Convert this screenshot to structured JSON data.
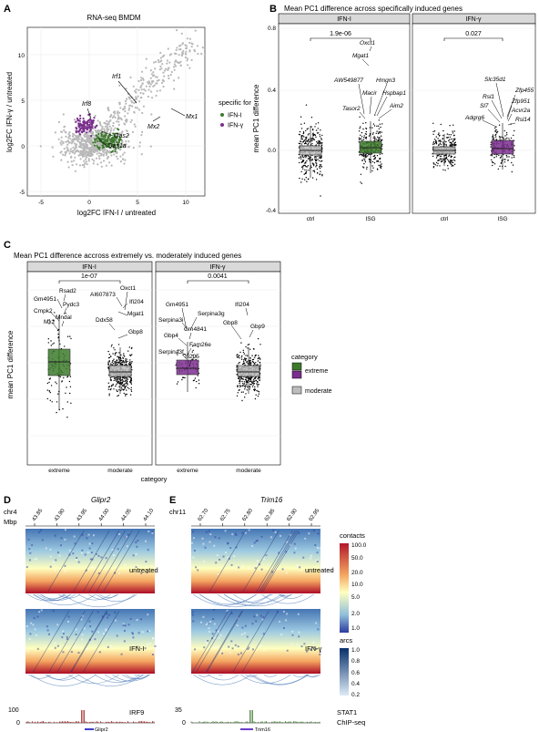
{
  "panels": {
    "A": "A",
    "B": "B",
    "C": "C",
    "D": "D",
    "E": "E"
  },
  "panel_a": {
    "title": "RNA-seq BMDM",
    "xlabel": "log2FC IFN-I / untreated",
    "ylabel": "log2FC IFN-γ / untreated",
    "xticks": [
      "-5",
      "0",
      "5",
      "10"
    ],
    "yticks": [
      "10",
      "5",
      "0",
      "-5"
    ],
    "labels": [
      "Irf1",
      "Irf8",
      "Oas2",
      "Oas1a",
      "Mx2",
      "Mx1"
    ],
    "legend_title": "specific for",
    "legend_items": [
      "IFN-I",
      "IFN-γ"
    ],
    "colors": {
      "ifn_i": "#3d7a2c",
      "ifn_g": "#7b2f8e",
      "other": "#b3b3b3"
    }
  },
  "panel_b": {
    "title": "Mean PC1 difference across specifically induced genes",
    "ylabel": "mean PC1 difference",
    "yticks": [
      "0.8",
      "0.4",
      "0.0",
      "-0.4"
    ],
    "facets": [
      "IFN-I",
      "IFN-γ"
    ],
    "xcats": [
      "ctrl",
      "ISG"
    ],
    "pvalues": [
      "1.9e-06",
      "0.027"
    ],
    "labels_ifn_i": [
      "Oxct1",
      "Mgat1",
      "AW549877",
      "Hmgn3",
      "Macir",
      "Hspbap1",
      "Tasor2",
      "Aim2"
    ],
    "labels_ifn_g": [
      "Slc35d1",
      "Zfp455",
      "Rsl1",
      "Zfp951",
      "Sl7",
      "Acvr2a",
      "Adgrg6",
      "Rsl14"
    ]
  },
  "panel_c": {
    "title": "Mean PC1 difference accross extremely vs. moderately induced genes",
    "ylabel": "mean PC1 difference",
    "xlabel": "category",
    "facets": [
      "IFN-I",
      "IFN-γ"
    ],
    "xcats": [
      "extreme",
      "moderate"
    ],
    "pvalues": [
      "1e-07",
      "0.0041"
    ],
    "labels_ifn_i": [
      "Rsad2",
      "Gm4951",
      "Pydc3",
      "Cmpk2",
      "Mndal",
      "Mx2",
      "Oxct1",
      "AI607873",
      "Ifi204",
      "Mgat1",
      "Ddx58",
      "Gbp8"
    ],
    "labels_ifn_g": [
      "Gm4951",
      "Serpina3g",
      "Serpina3i",
      "Gm4841",
      "Gbp4",
      "Fam26e",
      "Serpina3f",
      "Ifi205",
      "Ifi204",
      "Gbp8",
      "Gbp9"
    ],
    "legend_title": "category",
    "legend_items": [
      "extreme",
      "moderate"
    ],
    "colors": {
      "extreme_i": "#3d7a2c",
      "extreme_g": "#7b2f8e",
      "moderate": "#bdbdbd"
    }
  },
  "panel_d": {
    "gene": "Glipr2",
    "chr": "chr4",
    "unit": "Mbp",
    "ticks": [
      "43.85",
      "43.90",
      "43.95",
      "44.00",
      "44.05",
      "44.10"
    ],
    "conditions": [
      "untreated",
      "IFN-I"
    ],
    "track_max": "100",
    "track_min": "0",
    "track_name": "IRF9"
  },
  "panel_e": {
    "gene": "Trim16",
    "chr": "chr11",
    "ticks": [
      "62.70",
      "62.75",
      "62.80",
      "62.85",
      "62.90",
      "62.95"
    ],
    "conditions": [
      "untreated",
      "IFN-γ"
    ],
    "track_max": "35",
    "track_min": "0",
    "track_name": "STAT1",
    "track_sub": "ChIP-seq"
  },
  "contacts_legend": {
    "title": "contacts",
    "ticks": [
      "100.0",
      "50.0",
      "20.0",
      "10.0",
      "5.0",
      "2.0",
      "1.0"
    ]
  },
  "arcs_legend": {
    "title": "arcs",
    "ticks": [
      "1.0",
      "0.8",
      "0.6",
      "0.4",
      "0.2"
    ]
  }
}
